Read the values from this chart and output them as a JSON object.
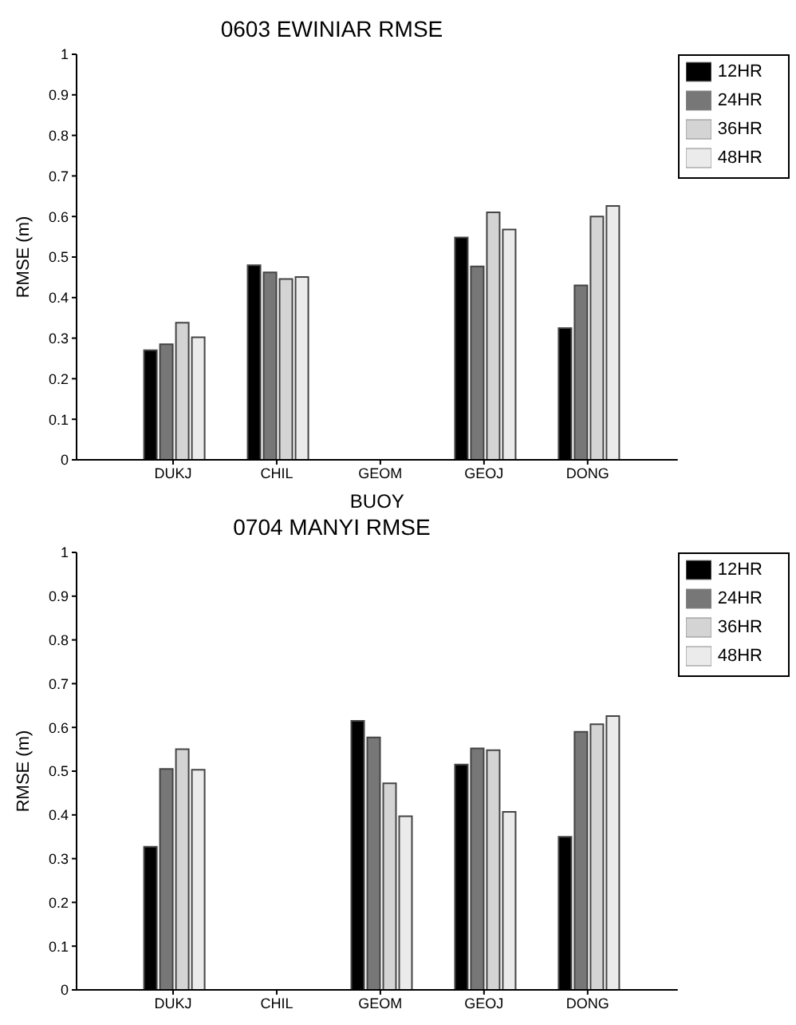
{
  "chart_data": [
    {
      "type": "bar",
      "title": "0603 EWINIAR RMSE",
      "xlabel": "BUOY",
      "ylabel": "RMSE (m)",
      "categories": [
        "DUKJ",
        "CHIL",
        "GEOM",
        "GEOJ",
        "DONG"
      ],
      "ylim": [
        0,
        1
      ],
      "yticks": [
        0,
        0.1,
        0.2,
        0.3,
        0.4,
        0.5,
        0.6,
        0.7,
        0.8,
        0.9,
        1
      ],
      "grid": false,
      "legend": "top right",
      "series": [
        {
          "name": "12HR",
          "color": "#000000",
          "values": [
            0.27,
            0.48,
            null,
            0.548,
            0.325
          ]
        },
        {
          "name": "24HR",
          "color": "#777777",
          "values": [
            0.285,
            0.462,
            null,
            0.477,
            0.43
          ]
        },
        {
          "name": "36HR",
          "color": "#d4d4d4",
          "values": [
            0.338,
            0.446,
            null,
            0.61,
            0.6
          ]
        },
        {
          "name": "48HR",
          "color": "#ebebeb",
          "values": [
            0.302,
            0.451,
            null,
            0.568,
            0.626
          ]
        }
      ]
    },
    {
      "type": "bar",
      "title": "0704 MANYI RMSE",
      "ylabel": "RMSE (m)",
      "categories": [
        "DUKJ",
        "CHIL",
        "GEOM",
        "GEOJ",
        "DONG"
      ],
      "ylim": [
        0,
        1
      ],
      "yticks": [
        0,
        0.1,
        0.2,
        0.3,
        0.4,
        0.5,
        0.6,
        0.7,
        0.8,
        0.9,
        1
      ],
      "grid": false,
      "legend": "top right",
      "series": [
        {
          "name": "12HR",
          "color": "#000000",
          "values": [
            0.327,
            null,
            0.615,
            0.515,
            0.35
          ]
        },
        {
          "name": "24HR",
          "color": "#777777",
          "values": [
            0.505,
            null,
            0.577,
            0.552,
            0.59
          ]
        },
        {
          "name": "36HR",
          "color": "#d4d4d4",
          "values": [
            0.55,
            null,
            0.472,
            0.548,
            0.607
          ]
        },
        {
          "name": "48HR",
          "color": "#ebebeb",
          "values": [
            0.503,
            null,
            0.397,
            0.407,
            0.626
          ]
        }
      ]
    }
  ]
}
